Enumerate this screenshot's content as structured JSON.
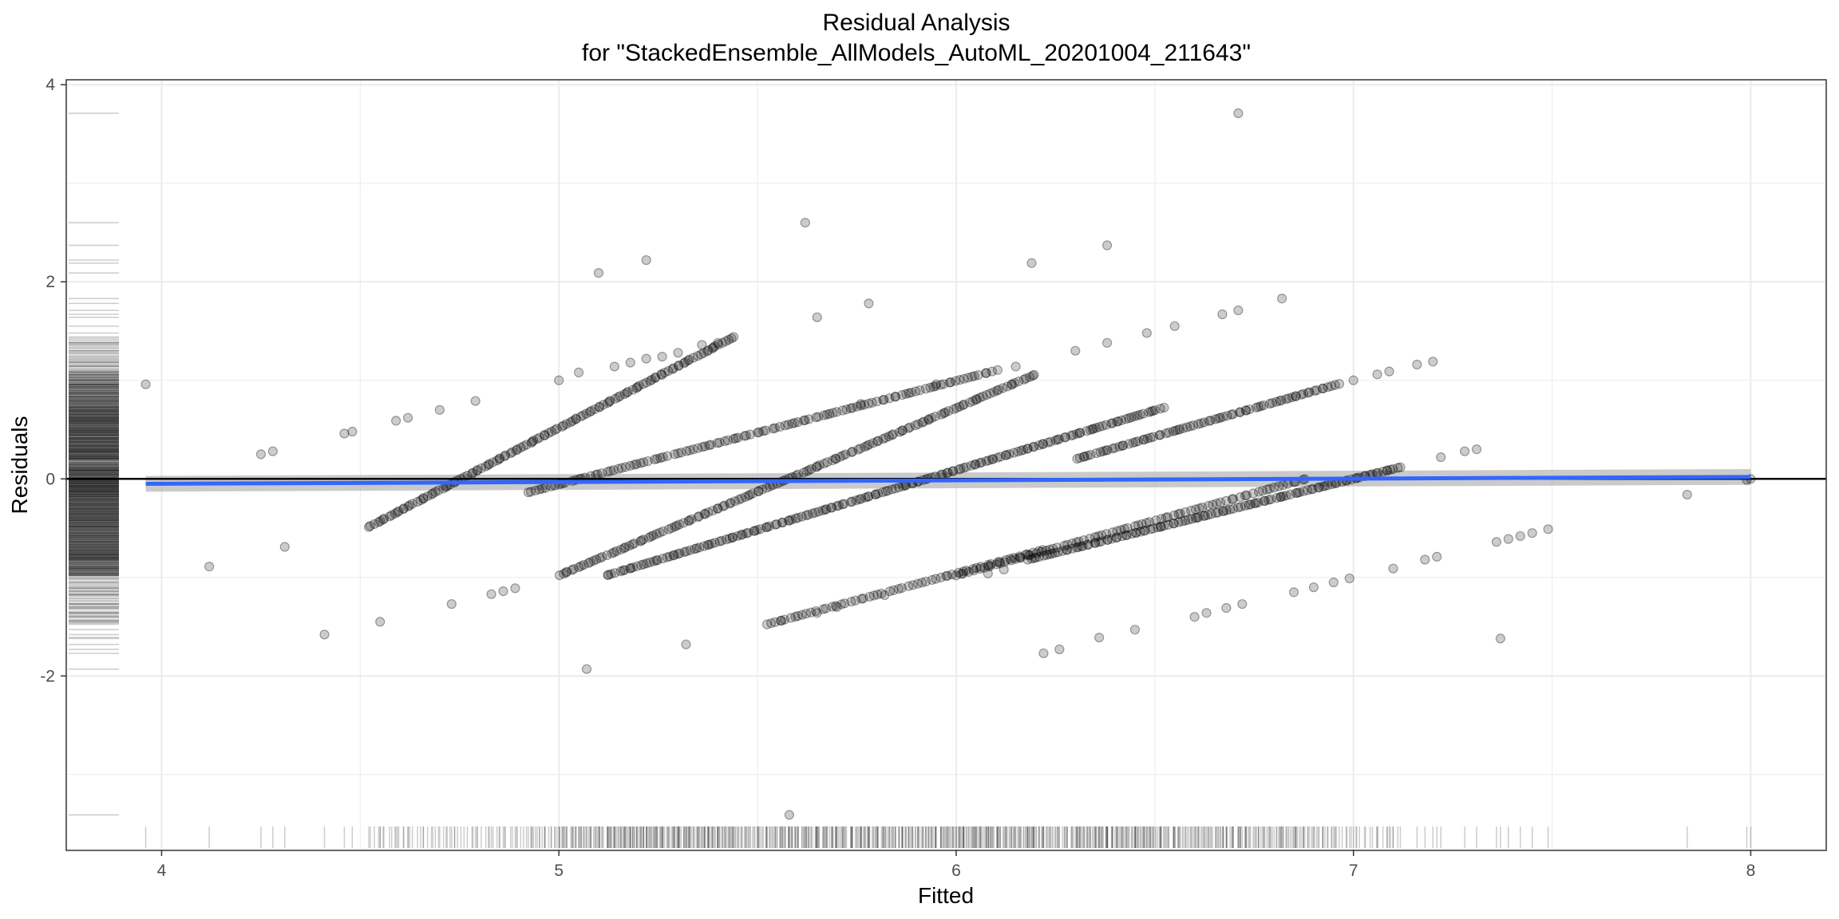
{
  "chart_data": {
    "type": "scatter",
    "title": "Residual Analysis",
    "subtitle": "for \"StackedEnsemble_AllModels_AutoML_20201004_211643\"",
    "xlabel": "Fitted",
    "ylabel": "Residuals",
    "xlim": [
      3.76,
      8.19
    ],
    "ylim": [
      -3.77,
      4.05
    ],
    "x_ticks": [
      4,
      5,
      6,
      7,
      8
    ],
    "y_ticks": [
      -2,
      0,
      2,
      4
    ],
    "grid": true,
    "reference_line": {
      "y": 0,
      "color": "#000000"
    },
    "smooth": {
      "method": "linear fit",
      "x": [
        3.96,
        8.0
      ],
      "y": [
        -0.05,
        0.02
      ],
      "band": 0.08,
      "color": "#3366ff",
      "band_color": "#b3b3b3"
    },
    "point_color": "#000000",
    "point_alpha": 0.2,
    "rug": true,
    "diagonal_bands": [
      {
        "x": [
          4.52,
          5.44
        ],
        "y": [
          -0.49,
          1.44
        ],
        "n": 130
      },
      {
        "x": [
          5.0,
          6.2
        ],
        "y": [
          -0.98,
          1.06
        ],
        "n": 150
      },
      {
        "x": [
          4.92,
          6.1
        ],
        "y": [
          -0.14,
          1.1
        ],
        "n": 120
      },
      {
        "x": [
          5.12,
          6.52
        ],
        "y": [
          -0.98,
          0.72
        ],
        "n": 180
      },
      {
        "x": [
          6.0,
          6.88
        ],
        "y": [
          -0.98,
          0.0
        ],
        "n": 80
      },
      {
        "x": [
          5.52,
          6.22
        ],
        "y": [
          -1.48,
          -0.72
        ],
        "n": 60
      },
      {
        "x": [
          6.18,
          7.12
        ],
        "y": [
          -0.82,
          0.12
        ],
        "n": 120
      },
      {
        "x": [
          6.3,
          6.96
        ],
        "y": [
          0.2,
          0.96
        ],
        "n": 80
      }
    ],
    "points": [
      [
        3.96,
        0.96
      ],
      [
        4.12,
        -0.89
      ],
      [
        4.25,
        0.25
      ],
      [
        4.28,
        0.28
      ],
      [
        4.31,
        -0.69
      ],
      [
        4.41,
        -1.58
      ],
      [
        4.46,
        0.46
      ],
      [
        4.48,
        0.48
      ],
      [
        4.55,
        -1.45
      ],
      [
        4.59,
        0.59
      ],
      [
        4.62,
        0.62
      ],
      [
        4.7,
        0.7
      ],
      [
        4.73,
        -1.27
      ],
      [
        4.79,
        0.79
      ],
      [
        4.83,
        -1.17
      ],
      [
        4.86,
        -1.14
      ],
      [
        4.89,
        -1.11
      ],
      [
        5.0,
        1.0
      ],
      [
        5.07,
        -1.93
      ],
      [
        5.1,
        2.09
      ],
      [
        5.05,
        1.08
      ],
      [
        5.14,
        1.14
      ],
      [
        5.18,
        1.18
      ],
      [
        5.22,
        2.22
      ],
      [
        5.22,
        1.22
      ],
      [
        5.26,
        1.24
      ],
      [
        5.3,
        1.28
      ],
      [
        5.32,
        -1.68
      ],
      [
        5.36,
        1.36
      ],
      [
        5.4,
        1.38
      ],
      [
        5.58,
        -3.41
      ],
      [
        5.62,
        2.6
      ],
      [
        5.65,
        1.64
      ],
      [
        5.78,
        1.78
      ],
      [
        5.76,
        0.76
      ],
      [
        5.82,
        -1.18
      ],
      [
        5.95,
        0.96
      ],
      [
        6.15,
        1.14
      ],
      [
        6.19,
        2.19
      ],
      [
        6.22,
        -1.77
      ],
      [
        6.26,
        -1.73
      ],
      [
        6.3,
        1.3
      ],
      [
        6.36,
        -1.61
      ],
      [
        6.38,
        2.37
      ],
      [
        6.38,
        1.38
      ],
      [
        6.48,
        1.48
      ],
      [
        6.45,
        -1.53
      ],
      [
        6.55,
        1.55
      ],
      [
        6.6,
        -1.4
      ],
      [
        6.63,
        -1.36
      ],
      [
        6.67,
        1.67
      ],
      [
        6.71,
        1.71
      ],
      [
        6.71,
        3.71
      ],
      [
        6.68,
        -1.31
      ],
      [
        6.72,
        -1.27
      ],
      [
        6.82,
        1.83
      ],
      [
        6.85,
        -1.15
      ],
      [
        6.9,
        -1.1
      ],
      [
        6.95,
        -1.05
      ],
      [
        6.99,
        -1.01
      ],
      [
        7.0,
        1.0
      ],
      [
        7.06,
        1.06
      ],
      [
        7.09,
        1.09
      ],
      [
        7.1,
        -0.91
      ],
      [
        7.16,
        1.16
      ],
      [
        7.18,
        -0.82
      ],
      [
        7.2,
        1.19
      ],
      [
        7.21,
        -0.79
      ],
      [
        7.22,
        0.22
      ],
      [
        7.28,
        0.28
      ],
      [
        7.31,
        0.3
      ],
      [
        7.36,
        -0.64
      ],
      [
        7.39,
        -0.61
      ],
      [
        7.42,
        -0.58
      ],
      [
        7.45,
        -0.55
      ],
      [
        7.37,
        -1.62
      ],
      [
        7.49,
        -0.51
      ],
      [
        7.84,
        -0.16
      ],
      [
        8.0,
        0.0
      ],
      [
        7.99,
        -0.01
      ],
      [
        6.08,
        -0.96
      ],
      [
        6.12,
        -0.92
      ],
      [
        5.56,
        -1.44
      ],
      [
        5.65,
        -1.36
      ],
      [
        5.7,
        -1.3
      ]
    ]
  }
}
